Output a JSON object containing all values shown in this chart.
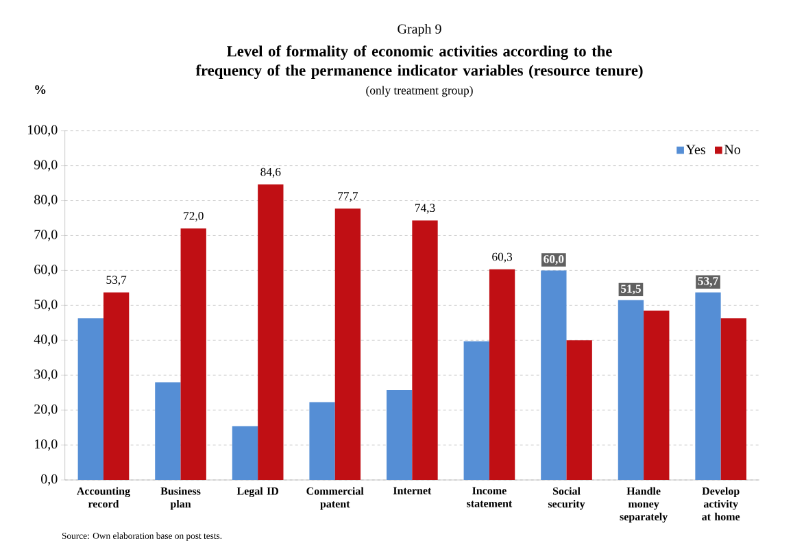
{
  "chart_data": {
    "type": "bar",
    "title": "Level of formality of economic activities according to the frequency of the permanence indicator variables (resource tenure)",
    "subtitle": "(only treatment group)",
    "ylabel": "%",
    "annotations": [
      "Graph 9",
      "Source: Own elaboration base on post tests."
    ],
    "categories": [
      "Accounting record",
      "Business plan",
      "Legal ID",
      "Commercial patent",
      "Internet",
      "Income statement",
      "Social security",
      "Handle money separately",
      "Develop activity at home"
    ],
    "series": [
      {
        "name": "Yes",
        "color": "#558ed5",
        "values": [
          46.3,
          28.0,
          15.4,
          22.3,
          25.7,
          39.7,
          60.0,
          51.5,
          53.7
        ],
        "value_labels": [
          null,
          null,
          null,
          null,
          null,
          null,
          "60,0",
          "51,5",
          "53,7"
        ]
      },
      {
        "name": "No",
        "color": "#c00f14",
        "values": [
          53.7,
          72.0,
          84.6,
          77.7,
          74.3,
          60.3,
          40.0,
          48.5,
          46.3
        ],
        "value_labels": [
          "53,7",
          "72,0",
          "84,6",
          "77,7",
          "74,3",
          "60,3",
          null,
          null,
          null
        ]
      }
    ],
    "ylim": [
      0,
      100
    ],
    "yticks": [
      {
        "value": 0,
        "label": "0,0"
      },
      {
        "value": 10,
        "label": "10,0"
      },
      {
        "value": 20,
        "label": "20,0"
      },
      {
        "value": 30,
        "label": "30,0"
      },
      {
        "value": 40,
        "label": "40,0"
      },
      {
        "value": 50,
        "label": "50,0"
      },
      {
        "value": 60,
        "label": "60,0"
      },
      {
        "value": 70,
        "label": "70,0"
      },
      {
        "value": 80,
        "label": "80,0"
      },
      {
        "value": 90,
        "label": "90,0"
      },
      {
        "value": 100,
        "label": "100,0"
      }
    ],
    "grid": "y",
    "legend": "top right"
  }
}
